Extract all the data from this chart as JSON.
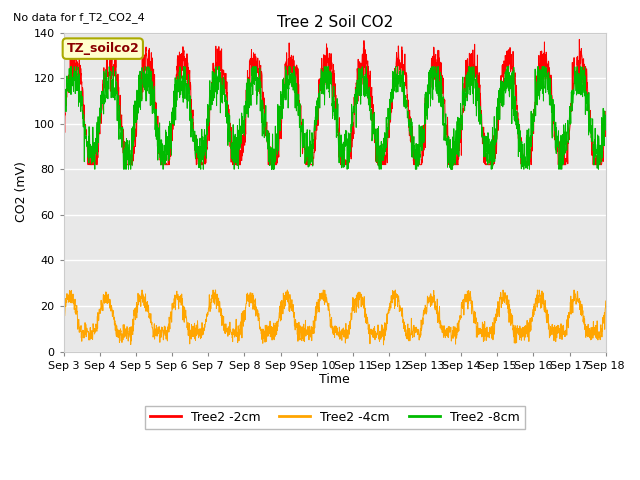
{
  "title": "Tree 2 Soil CO2",
  "subtitle": "No data for f_T2_CO2_4",
  "ylabel": "CO2 (mV)",
  "xlabel": "Time",
  "ylim": [
    0,
    140
  ],
  "yticks": [
    0,
    20,
    40,
    60,
    80,
    100,
    120,
    140
  ],
  "xticklabels": [
    "Sep 3",
    "Sep 4",
    "Sep 5",
    "Sep 6",
    "Sep 7",
    "Sep 8",
    "Sep 9",
    "Sep 10",
    "Sep 11",
    "Sep 12",
    "Sep 13",
    "Sep 14",
    "Sep 15",
    "Sep 16",
    "Sep 17",
    "Sep 18"
  ],
  "legend_label_2cm": "Tree2 -2cm",
  "legend_label_4cm": "Tree2 -4cm",
  "legend_label_8cm": "Tree2 -8cm",
  "color_2cm": "#ff0000",
  "color_4cm": "#ffa500",
  "color_8cm": "#00bb00",
  "annotation_box": "TZ_soilco2",
  "background_color": "#ffffff",
  "plot_bg_color": "#e8e8e8",
  "grid_color": "#ffffff",
  "num_days": 15,
  "samples_per_day": 144
}
